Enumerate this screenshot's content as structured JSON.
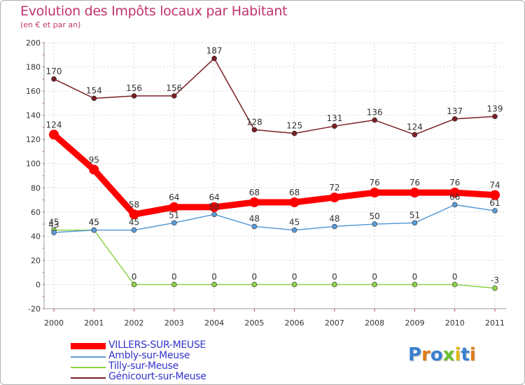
{
  "header": {
    "title": "Evolution des Impôts locaux par Habitant",
    "subtitle": "(en € et par an)"
  },
  "logo": {
    "text": "Proxiti",
    "colors": [
      "#3a7fd0",
      "#e07a18",
      "#3a7fd0",
      "#6abf2e",
      "#e0b818",
      "#3a7fd0",
      "#e07a18"
    ]
  },
  "chart_data": {
    "type": "line",
    "title": "Evolution des Impôts locaux par Habitant",
    "subtitle": "(en € et par an)",
    "xlabel": "",
    "ylabel": "",
    "categories": [
      "2000",
      "2001",
      "2002",
      "2003",
      "2004",
      "2005",
      "2006",
      "2007",
      "2008",
      "2009",
      "2010",
      "2011"
    ],
    "ylim": [
      -20,
      200
    ],
    "yticks": [
      -20,
      0,
      20,
      40,
      60,
      80,
      100,
      120,
      140,
      160,
      180,
      200
    ],
    "grid": true,
    "legend_position": "bottom-left",
    "series": [
      {
        "name": "Génicourt-sur-Meuse",
        "color": "#7a1f24",
        "values": [
          170,
          154,
          156,
          156,
          187,
          128,
          125,
          131,
          136,
          124,
          137,
          139
        ],
        "labels": [
          "170",
          "154",
          "156",
          "156",
          "187",
          "128",
          "125",
          "131",
          "136",
          "124",
          "137",
          "139"
        ],
        "emphasis": false
      },
      {
        "name": "Tilly-sur-Meuse",
        "color": "#8cd24a",
        "values": [
          45,
          45,
          0,
          0,
          0,
          0,
          0,
          0,
          0,
          0,
          0,
          -3
        ],
        "labels": [
          "45",
          "45",
          "0",
          "0",
          "0",
          "0",
          "0",
          "0",
          "0",
          "0",
          "0",
          "-3"
        ],
        "emphasis": false
      },
      {
        "name": "Ambly-sur-Meuse",
        "color": "#5b9bd5",
        "values": [
          43,
          45,
          45,
          51,
          58,
          48,
          45,
          48,
          50,
          51,
          66,
          61
        ],
        "labels": [
          "43",
          "45",
          "45",
          "51",
          "58",
          "48",
          "45",
          "48",
          "50",
          "51",
          "66",
          "61"
        ],
        "emphasis": false
      },
      {
        "name": "VILLERS-SUR-MEUSE",
        "color": "#ff0000",
        "values": [
          124,
          95,
          58,
          64,
          64,
          68,
          68,
          72,
          76,
          76,
          76,
          74
        ],
        "labels": [
          "124",
          "95",
          "58",
          "64",
          "64",
          "68",
          "68",
          "72",
          "76",
          "76",
          "76",
          "74"
        ],
        "emphasis": true
      }
    ],
    "legend": [
      {
        "name": "VILLERS-SUR-MEUSE",
        "color": "#ff0000",
        "text_color": "#3333cc",
        "emphasis": true
      },
      {
        "name": "Ambly-sur-Meuse",
        "color": "#5b9bd5",
        "text_color": "#3333cc",
        "emphasis": false
      },
      {
        "name": "Tilly-sur-Meuse",
        "color": "#8cd24a",
        "text_color": "#3333cc",
        "emphasis": false
      },
      {
        "name": "Génicourt-sur-Meuse",
        "color": "#7a1f24",
        "text_color": "#3333cc",
        "emphasis": false
      }
    ]
  }
}
